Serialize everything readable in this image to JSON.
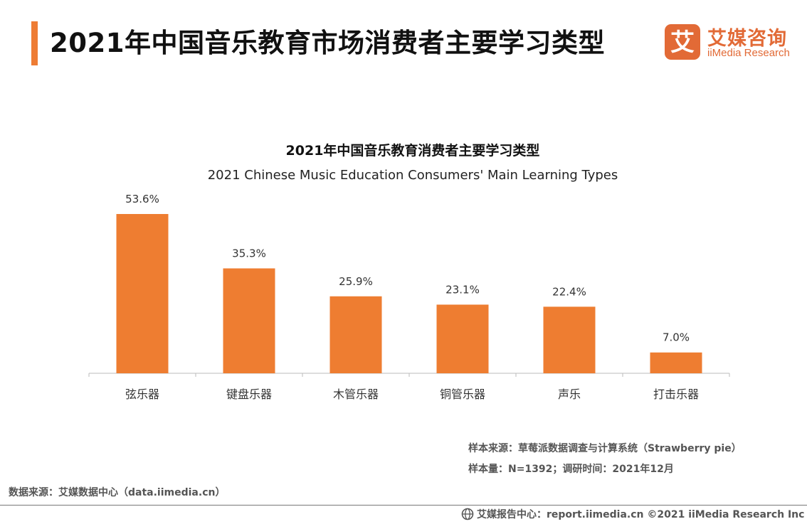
{
  "header": {
    "title": "2021年中国音乐教育市场消费者主要学习类型",
    "logo_cn": "艾媒咨询",
    "logo_en": "iiMedia Research",
    "logo_mark_char": "艾",
    "accent_color": "#ee7c34"
  },
  "chart_data": {
    "type": "bar",
    "title": "2021年中国音乐教育消费者主要学习类型",
    "subtitle": "2021 Chinese Music Education Consumers' Main Learning Types",
    "categories": [
      "弦乐器",
      "键盘乐器",
      "木管乐器",
      "铜管乐器",
      "声乐",
      "打击乐器"
    ],
    "values": [
      53.6,
      35.3,
      25.9,
      23.1,
      22.4,
      7.0
    ],
    "value_labels": [
      "53.6%",
      "35.3%",
      "25.9%",
      "23.1%",
      "22.4%",
      "7.0%"
    ],
    "unit": "%",
    "ylim": [
      0,
      53.6
    ],
    "bar_color": "#ee7d31",
    "grid": false,
    "legend": "none"
  },
  "notes": {
    "sample_source": "样本来源：草莓派数据调查与计算系统（Strawberry pie）",
    "sample_size": "样本量：N=1392；调研时间：2021年12月",
    "data_source": "数据来源：艾媒数据中心（data.iimedia.cn）"
  },
  "footer": {
    "text": "艾媒报告中心：report.iimedia.cn  ©2021  iiMedia Research  Inc",
    "icon": "globe-icon"
  }
}
